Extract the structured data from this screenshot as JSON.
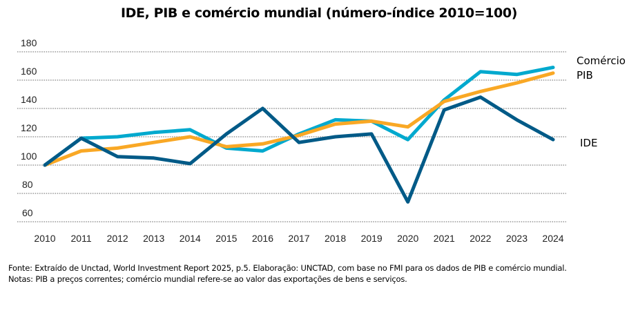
{
  "chart_data": {
    "type": "line",
    "title": "IDE, PIB e comércio mundial (número-índice 2010=100)",
    "xlabel": "",
    "ylabel": "",
    "ylim": [
      60,
      180
    ],
    "yticks": [
      60,
      80,
      100,
      120,
      140,
      160,
      180
    ],
    "grid": true,
    "legend": "direct labels at right end of lines",
    "x": [
      "2010",
      "2011",
      "2012",
      "2013",
      "2014",
      "2015",
      "2016",
      "2017",
      "2018",
      "2019",
      "2020",
      "2021",
      "2022",
      "2023",
      "2024"
    ],
    "series": [
      {
        "name": "Comércio",
        "color": "#00A9CE",
        "values": [
          100,
          119,
          120,
          123,
          125,
          112,
          110,
          122,
          132,
          131,
          118,
          146,
          166,
          164,
          169
        ]
      },
      {
        "name": "PIB",
        "color": "#F9A825",
        "values": [
          100,
          110,
          112,
          116,
          120,
          113,
          115,
          121,
          129,
          131,
          127,
          145,
          152,
          158,
          165
        ]
      },
      {
        "name": "IDE",
        "color": "#005A87",
        "values": [
          100,
          119,
          106,
          105,
          101,
          122,
          140,
          116,
          120,
          122,
          74,
          139,
          148,
          132,
          118
        ]
      }
    ]
  },
  "footer": {
    "source": "Fonte: Extraído de Unctad, World Investment Report 2025,  p.5. Elaboração: UNCTAD, com base no FMI para os dados de PIB e comércio mundial.",
    "notes": "Notas: PIB a  preços correntes; comércio mundial refere-se ao valor das exportações de bens e serviços."
  }
}
